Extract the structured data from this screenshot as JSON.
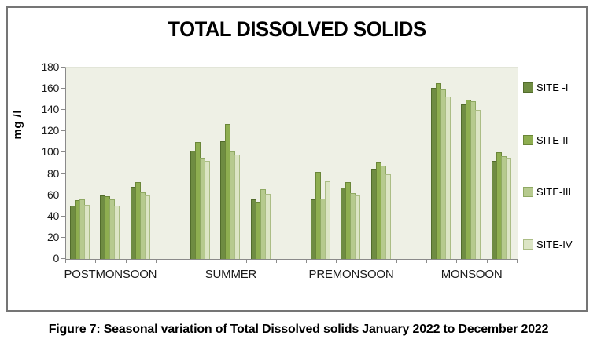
{
  "caption": {
    "text": "Figure 7: Seasonal variation of Total Dissolved solids January 2022 to December 2022"
  },
  "chart_data": {
    "type": "bar",
    "title": "TOTAL DISSOLVED SOLIDS",
    "ylabel": "mg /l",
    "ylim": [
      0,
      180
    ],
    "ytick_step": 20,
    "grid": false,
    "legend_position": "right",
    "categories": [
      "POSTMONSOON",
      "SUMMER",
      "PREMONSOON",
      "MONSOON"
    ],
    "clusters_per_category": 3,
    "series": [
      {
        "name": "SITE -I",
        "color": "#6f8c42",
        "border_color": "#526c2c",
        "values": [
          [
            50,
            60,
            68
          ],
          [
            102,
            111,
            56
          ],
          [
            56,
            67,
            85
          ],
          [
            161,
            145,
            92
          ]
        ]
      },
      {
        "name": "SITE-II",
        "color": "#8eae50",
        "border_color": "#6a8638",
        "values": [
          [
            55,
            59,
            72
          ],
          [
            110,
            127,
            54
          ],
          [
            82,
            72,
            91
          ],
          [
            165,
            150,
            100
          ]
        ]
      },
      {
        "name": "SITE-III",
        "color": "#b6ca8e",
        "border_color": "#8fa963",
        "values": [
          [
            56,
            56,
            63
          ],
          [
            95,
            101,
            66
          ],
          [
            57,
            62,
            88
          ],
          [
            159,
            148,
            97
          ]
        ]
      },
      {
        "name": "SITE-IV",
        "color": "#dce5c5",
        "border_color": "#abbd85",
        "values": [
          [
            51,
            50,
            60
          ],
          [
            92,
            98,
            61
          ],
          [
            73,
            60,
            80
          ],
          [
            153,
            140,
            95
          ]
        ]
      }
    ],
    "colors": {
      "plot_background": "#eef0e5",
      "axis": "#8a8a8a",
      "panel_border": "#757575"
    }
  }
}
